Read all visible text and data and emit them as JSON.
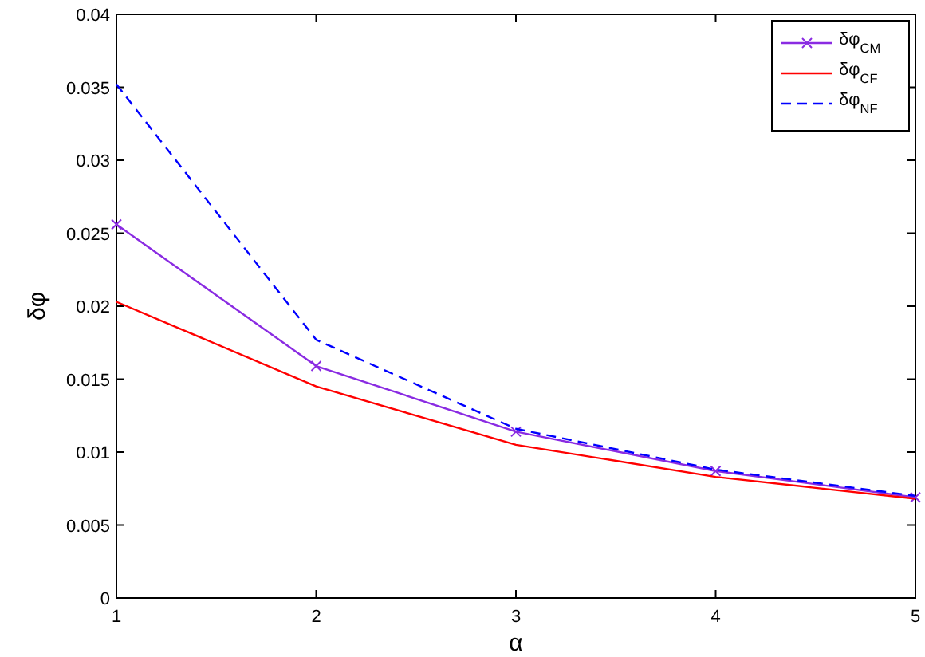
{
  "chart_data": {
    "type": "line",
    "xlabel": "α",
    "ylabel": "δφ",
    "x": [
      1,
      2,
      3,
      4,
      5
    ],
    "series": [
      {
        "name": "δφ$_{CM}$",
        "color": "#8a2be2",
        "values": [
          0.0256,
          0.0159,
          0.0114,
          0.0087,
          0.0069
        ],
        "marker": "cross",
        "line_style": "solid"
      },
      {
        "name": "δφ$_{CF}$",
        "color": "#ff0000",
        "values": [
          0.0203,
          0.0145,
          0.0105,
          0.0083,
          0.0068
        ],
        "marker": "none",
        "line_style": "solid"
      },
      {
        "name": "δφ$_{NF}$",
        "color": "#0000ff",
        "values": [
          0.0352,
          0.0177,
          0.0116,
          0.0088,
          0.007
        ],
        "marker": "none",
        "line_style": "dashed"
      }
    ],
    "xlim": [
      1,
      5
    ],
    "xticks": [
      1,
      2,
      3,
      4,
      5
    ],
    "ylim": [
      0,
      0.04
    ],
    "yticks": [
      0,
      0.005,
      0.01,
      0.015,
      0.02,
      0.025,
      0.03,
      0.035,
      0.04
    ],
    "grid": false,
    "legend": "top right"
  }
}
